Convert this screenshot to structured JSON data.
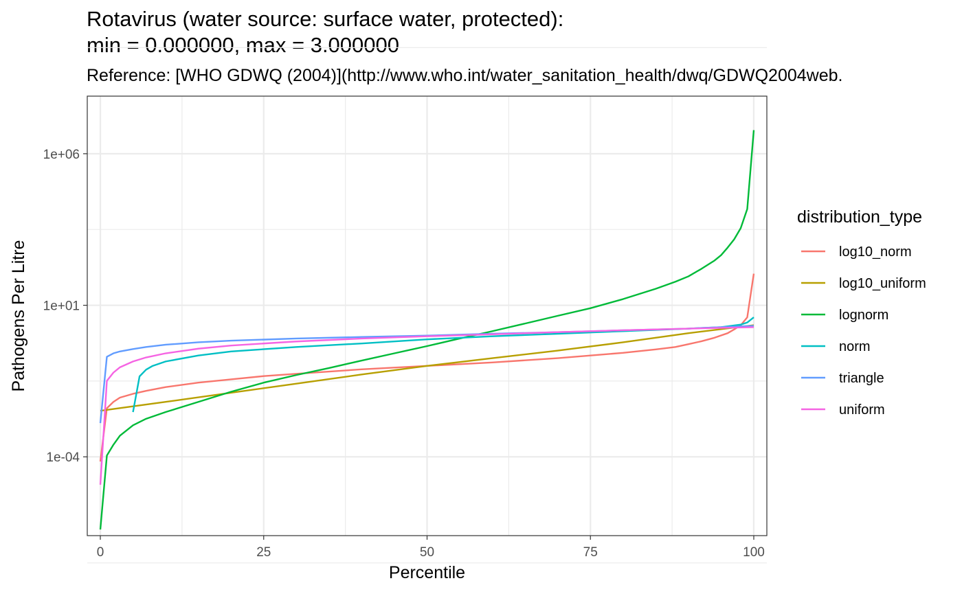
{
  "chart_data": {
    "type": "line",
    "title_line1": "Rotavirus (water source: surface water, protected):",
    "title_line2": "min = 0.000000, max = 3.000000",
    "subtitle": "Reference: [WHO GDWQ (2004)](http://www.who.int/water_sanitation_health/dwq/GDWQ2004web.",
    "xlabel": "Percentile",
    "ylabel": "Pathogens Per Litre",
    "xlim": [
      -2,
      102
    ],
    "ylim_log10": [
      -6.6,
      7.9
    ],
    "y_scale": "log10",
    "grid": true,
    "x_ticks": [
      {
        "value": 0,
        "label": "0"
      },
      {
        "value": 25,
        "label": "25"
      },
      {
        "value": 50,
        "label": "50"
      },
      {
        "value": 75,
        "label": "75"
      },
      {
        "value": 100,
        "label": "100"
      }
    ],
    "y_ticks": [
      {
        "value": 0.0001,
        "label": "1e-04"
      },
      {
        "value": 10,
        "label": "1e+01"
      },
      {
        "value": 1000000.0,
        "label": "1e+06"
      }
    ],
    "legend": {
      "title": "distribution_type",
      "placement": "right"
    },
    "series": [
      {
        "name": "log10_norm",
        "color": "#F8766D",
        "points": [
          [
            0,
            7e-05
          ],
          [
            1,
            0.004
          ],
          [
            2,
            0.0065
          ],
          [
            3,
            0.009
          ],
          [
            5,
            0.012
          ],
          [
            7,
            0.015
          ],
          [
            10,
            0.02
          ],
          [
            15,
            0.028
          ],
          [
            20,
            0.036
          ],
          [
            25,
            0.046
          ],
          [
            30,
            0.055
          ],
          [
            40,
            0.077
          ],
          [
            50,
            0.1
          ],
          [
            60,
            0.13
          ],
          [
            70,
            0.18
          ],
          [
            80,
            0.27
          ],
          [
            85,
            0.35
          ],
          [
            88,
            0.42
          ],
          [
            90,
            0.52
          ],
          [
            92,
            0.65
          ],
          [
            94,
            0.85
          ],
          [
            96,
            1.2
          ],
          [
            97,
            1.6
          ],
          [
            98,
            2.2
          ],
          [
            99,
            4
          ],
          [
            100,
            110
          ]
        ]
      },
      {
        "name": "log10_uniform",
        "color": "#B79F00",
        "points": [
          [
            0,
            0.0033
          ],
          [
            10,
            0.0065
          ],
          [
            20,
            0.013
          ],
          [
            30,
            0.026
          ],
          [
            40,
            0.052
          ],
          [
            50,
            0.1
          ],
          [
            60,
            0.18
          ],
          [
            70,
            0.32
          ],
          [
            80,
            0.6
          ],
          [
            90,
            1.2
          ],
          [
            100,
            2.2
          ]
        ]
      },
      {
        "name": "lognorm",
        "color": "#00BA38",
        "points": [
          [
            0,
            4e-07
          ],
          [
            1,
            0.00011
          ],
          [
            2,
            0.00025
          ],
          [
            3,
            0.0005
          ],
          [
            5,
            0.0011
          ],
          [
            7,
            0.0018
          ],
          [
            10,
            0.003
          ],
          [
            15,
            0.0065
          ],
          [
            20,
            0.014
          ],
          [
            25,
            0.028
          ],
          [
            30,
            0.05
          ],
          [
            35,
            0.085
          ],
          [
            40,
            0.15
          ],
          [
            45,
            0.26
          ],
          [
            50,
            0.45
          ],
          [
            55,
            0.8
          ],
          [
            60,
            1.4
          ],
          [
            65,
            2.5
          ],
          [
            70,
            4.5
          ],
          [
            75,
            8
          ],
          [
            80,
            16
          ],
          [
            85,
            35
          ],
          [
            88,
            60
          ],
          [
            90,
            90
          ],
          [
            92,
            160
          ],
          [
            94,
            300
          ],
          [
            95,
            450
          ],
          [
            96,
            800
          ],
          [
            97,
            1500
          ],
          [
            98,
            3500
          ],
          [
            99,
            15000
          ],
          [
            100,
            6000000
          ]
        ]
      },
      {
        "name": "norm",
        "color": "#00BFC4",
        "points": [
          [
            5,
            0.003
          ],
          [
            6,
            0.045
          ],
          [
            7,
            0.075
          ],
          [
            8,
            0.1
          ],
          [
            10,
            0.14
          ],
          [
            15,
            0.22
          ],
          [
            20,
            0.3
          ],
          [
            30,
            0.42
          ],
          [
            40,
            0.55
          ],
          [
            50,
            0.75
          ],
          [
            60,
            0.95
          ],
          [
            70,
            1.15
          ],
          [
            80,
            1.4
          ],
          [
            90,
            1.7
          ],
          [
            95,
            1.9
          ],
          [
            98,
            2.3
          ],
          [
            99,
            2.7
          ],
          [
            100,
            4
          ]
        ]
      },
      {
        "name": "triangle",
        "color": "#619CFF",
        "points": [
          [
            0,
            0.0013
          ],
          [
            1,
            0.2
          ],
          [
            2,
            0.26
          ],
          [
            3,
            0.3
          ],
          [
            5,
            0.36
          ],
          [
            7,
            0.42
          ],
          [
            10,
            0.5
          ],
          [
            15,
            0.6
          ],
          [
            20,
            0.68
          ],
          [
            30,
            0.8
          ],
          [
            40,
            0.9
          ],
          [
            50,
            1.0
          ],
          [
            60,
            1.15
          ],
          [
            70,
            1.3
          ],
          [
            80,
            1.5
          ],
          [
            90,
            1.7
          ],
          [
            95,
            1.9
          ],
          [
            100,
            2.1
          ]
        ]
      },
      {
        "name": "uniform",
        "color": "#F564E3",
        "points": [
          [
            0,
            1.2e-05
          ],
          [
            1,
            0.032
          ],
          [
            2,
            0.06
          ],
          [
            3,
            0.09
          ],
          [
            5,
            0.14
          ],
          [
            7,
            0.19
          ],
          [
            10,
            0.26
          ],
          [
            15,
            0.37
          ],
          [
            20,
            0.47
          ],
          [
            30,
            0.64
          ],
          [
            40,
            0.8
          ],
          [
            50,
            0.95
          ],
          [
            60,
            1.1
          ],
          [
            70,
            1.3
          ],
          [
            80,
            1.5
          ],
          [
            90,
            1.7
          ],
          [
            100,
            1.9
          ]
        ]
      }
    ]
  }
}
